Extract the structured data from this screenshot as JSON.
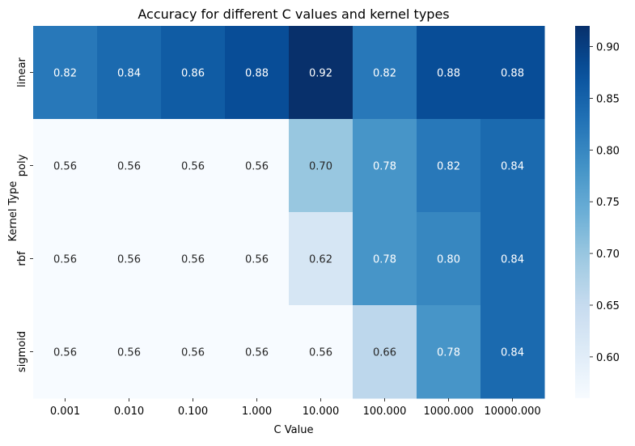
{
  "chart_data": {
    "type": "heatmap",
    "title": "Accuracy for different C values and kernel types",
    "xlabel": "C Value",
    "ylabel": "Kernel Type",
    "x_categories": [
      "0.001",
      "0.010",
      "0.100",
      "1.000",
      "10.000",
      "100.000",
      "1000.000",
      "10000.000"
    ],
    "y_categories": [
      "linear",
      "poly",
      "rbf",
      "sigmoid"
    ],
    "values": [
      [
        0.82,
        0.84,
        0.86,
        0.88,
        0.92,
        0.82,
        0.88,
        0.88
      ],
      [
        0.56,
        0.56,
        0.56,
        0.56,
        0.7,
        0.78,
        0.82,
        0.84
      ],
      [
        0.56,
        0.56,
        0.56,
        0.56,
        0.62,
        0.78,
        0.8,
        0.84
      ],
      [
        0.56,
        0.56,
        0.56,
        0.56,
        0.56,
        0.66,
        0.78,
        0.84
      ]
    ],
    "value_format": "0.00",
    "colormap": "Blues",
    "vmin": 0.56,
    "vmax": 0.92,
    "colorbar_ticks": [
      "0.60",
      "0.65",
      "0.70",
      "0.75",
      "0.80",
      "0.85",
      "0.90"
    ],
    "annotation_colors": {
      "dark_cell_text": "#ffffff",
      "light_cell_text": "#262626"
    },
    "grid": false
  }
}
